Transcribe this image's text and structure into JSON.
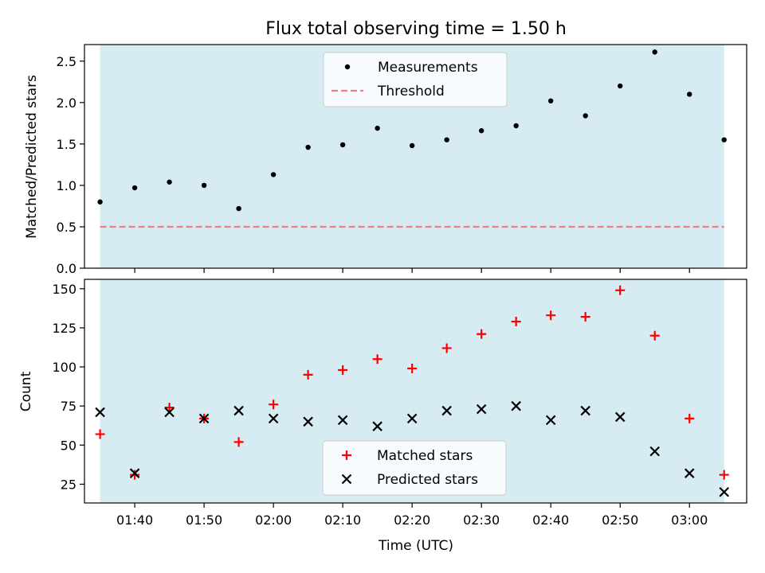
{
  "chart_data": [
    {
      "type": "scatter",
      "title": "Flux total observing time = 1.50 h",
      "xlabel": "",
      "ylabel": "Matched/Predicted stars",
      "ylim": [
        0,
        2.7
      ],
      "yticks": [
        "0.0",
        "0.5",
        "1.0",
        "1.5",
        "2.0",
        "2.5"
      ],
      "x": [
        "01:35",
        "01:40",
        "01:45",
        "01:50",
        "01:55",
        "02:00",
        "02:05",
        "02:10",
        "02:15",
        "02:20",
        "02:25",
        "02:30",
        "02:35",
        "02:40",
        "02:45",
        "02:50",
        "02:55",
        "03:00",
        "03:05"
      ],
      "series": [
        {
          "name": "Measurements",
          "marker": "dot",
          "color": "#000000",
          "values": [
            0.8,
            0.97,
            1.04,
            1.0,
            0.72,
            1.13,
            1.46,
            1.49,
            1.69,
            1.48,
            1.55,
            1.66,
            1.72,
            2.02,
            1.84,
            2.2,
            2.61,
            2.1,
            1.55
          ]
        },
        {
          "name": "Threshold",
          "marker": "dashed-line",
          "color": "#f08080",
          "value": 0.5
        }
      ],
      "observing_span": [
        "01:35",
        "03:05"
      ],
      "span_color": "#add8e6",
      "legend": "top-center"
    },
    {
      "type": "scatter",
      "title": "",
      "xlabel": "Time (UTC)",
      "ylabel": "Count",
      "ylim": [
        13,
        156
      ],
      "yticks": [
        "25",
        "50",
        "75",
        "100",
        "125",
        "150"
      ],
      "xticks": [
        "01:40",
        "01:50",
        "02:00",
        "02:10",
        "02:20",
        "02:30",
        "02:40",
        "02:50",
        "03:00"
      ],
      "x": [
        "01:35",
        "01:40",
        "01:45",
        "01:50",
        "01:55",
        "02:00",
        "02:05",
        "02:10",
        "02:15",
        "02:20",
        "02:25",
        "02:30",
        "02:35",
        "02:40",
        "02:45",
        "02:50",
        "02:55",
        "03:00",
        "03:05"
      ],
      "series": [
        {
          "name": "Matched stars",
          "marker": "plus",
          "color": "#ff0000",
          "values": [
            57,
            31,
            74,
            67,
            52,
            76,
            95,
            98,
            105,
            99,
            112,
            121,
            129,
            133,
            132,
            149,
            120,
            67,
            31
          ]
        },
        {
          "name": "Predicted stars",
          "marker": "x",
          "color": "#000000",
          "values": [
            71,
            32,
            71,
            67,
            72,
            67,
            65,
            66,
            62,
            67,
            72,
            73,
            75,
            66,
            72,
            68,
            46,
            32,
            20
          ]
        }
      ],
      "observing_span": [
        "01:35",
        "03:05"
      ],
      "span_color": "#add8e6",
      "legend": "bottom-center"
    }
  ]
}
